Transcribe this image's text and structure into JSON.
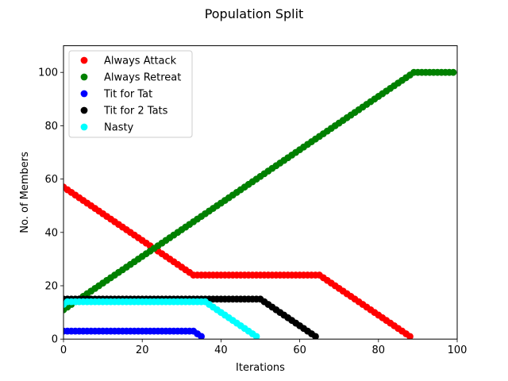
{
  "chart_data": {
    "type": "scatter",
    "title": "Population Split",
    "xlabel": "Iterations",
    "ylabel": "No. of Members",
    "xlim": [
      0,
      100
    ],
    "ylim": [
      0,
      110
    ],
    "xticks": [
      "0",
      "20",
      "40",
      "60",
      "80",
      "100"
    ],
    "yticks": [
      "0",
      "20",
      "40",
      "60",
      "80",
      "100"
    ],
    "legend_position": "top-left",
    "grid": false,
    "series": [
      {
        "name": "Always Attack",
        "color": "#ff0000",
        "segments": [
          {
            "x_start": 0,
            "x_end": 33,
            "y_start": 57,
            "y_end": 24
          },
          {
            "x_start": 33,
            "x_end": 65,
            "y_start": 24,
            "y_end": 24
          },
          {
            "x_start": 65,
            "x_end": 88,
            "y_start": 24,
            "y_end": 1
          }
        ]
      },
      {
        "name": "Always Retreat",
        "color": "#008000",
        "segments": [
          {
            "x_start": 0,
            "x_end": 89,
            "y_start": 11,
            "y_end": 100
          },
          {
            "x_start": 89,
            "x_end": 99,
            "y_start": 100,
            "y_end": 100
          }
        ]
      },
      {
        "name": "Tit for Tat",
        "color": "#0000ff",
        "segments": [
          {
            "x_start": 0,
            "x_end": 33,
            "y_start": 3,
            "y_end": 3
          },
          {
            "x_start": 33,
            "x_end": 35,
            "y_start": 3,
            "y_end": 1
          }
        ]
      },
      {
        "name": "Tit for 2 Tats",
        "color": "#000000",
        "segments": [
          {
            "x_start": 0,
            "x_end": 50,
            "y_start": 15,
            "y_end": 15
          },
          {
            "x_start": 50,
            "x_end": 64,
            "y_start": 15,
            "y_end": 1
          }
        ]
      },
      {
        "name": "Nasty",
        "color": "#00ffff",
        "segments": [
          {
            "x_start": 0,
            "x_end": 1,
            "y_start": 13,
            "y_end": 14
          },
          {
            "x_start": 1,
            "x_end": 36,
            "y_start": 14,
            "y_end": 14
          },
          {
            "x_start": 36,
            "x_end": 49,
            "y_start": 14,
            "y_end": 1
          }
        ]
      }
    ]
  }
}
